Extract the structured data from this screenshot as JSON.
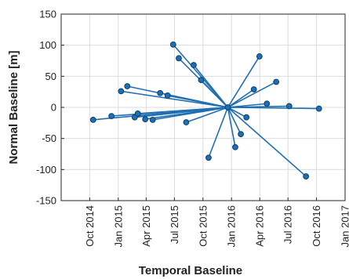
{
  "chart_data": {
    "type": "scatter",
    "xlabel": "Temporal Baseline",
    "ylabel": "Normal Baseline [m]",
    "ylim": [
      -150,
      150
    ],
    "yticks": [
      -150,
      -100,
      -50,
      0,
      50,
      100,
      150
    ],
    "xlim": [
      "2014-07-01",
      "2017-01-01"
    ],
    "xticks": [
      {
        "date": "2014-10-01",
        "label": "Oct 2014"
      },
      {
        "date": "2015-01-01",
        "label": "Jan 2015"
      },
      {
        "date": "2015-04-01",
        "label": "Apr 2015"
      },
      {
        "date": "2015-07-01",
        "label": "Jul 2015"
      },
      {
        "date": "2015-10-01",
        "label": "Oct 2015"
      },
      {
        "date": "2016-01-01",
        "label": "Jan 2016"
      },
      {
        "date": "2016-04-01",
        "label": "Apr 2016"
      },
      {
        "date": "2016-07-01",
        "label": "Jul 2016"
      },
      {
        "date": "2016-10-01",
        "label": "Oct 2016"
      },
      {
        "date": "2017-01-01",
        "label": "Jan 2017"
      }
    ],
    "grid": true,
    "color": "#1f6fb2",
    "marker_edge_color": "#0b3f6b",
    "reference": {
      "x": "2015-12-20",
      "y": 0
    },
    "points": [
      {
        "x": "2014-10-12",
        "y": -20
      },
      {
        "x": "2014-12-10",
        "y": -14
      },
      {
        "x": "2015-01-10",
        "y": 26
      },
      {
        "x": "2015-01-30",
        "y": 34
      },
      {
        "x": "2015-02-23",
        "y": -16
      },
      {
        "x": "2015-03-05",
        "y": -10
      },
      {
        "x": "2015-03-29",
        "y": -19
      },
      {
        "x": "2015-04-22",
        "y": -20
      },
      {
        "x": "2015-05-16",
        "y": 23
      },
      {
        "x": "2015-06-09",
        "y": 19
      },
      {
        "x": "2015-06-27",
        "y": 101
      },
      {
        "x": "2015-07-15",
        "y": 79
      },
      {
        "x": "2015-08-08",
        "y": -24
      },
      {
        "x": "2015-09-01",
        "y": 68
      },
      {
        "x": "2015-09-25",
        "y": 44
      },
      {
        "x": "2015-10-19",
        "y": -81
      },
      {
        "x": "2016-01-13",
        "y": -64
      },
      {
        "x": "2016-01-31",
        "y": -43
      },
      {
        "x": "2016-02-18",
        "y": -16
      },
      {
        "x": "2016-03-13",
        "y": 29
      },
      {
        "x": "2016-03-31",
        "y": 82
      },
      {
        "x": "2016-04-24",
        "y": 6
      },
      {
        "x": "2016-05-24",
        "y": 41
      },
      {
        "x": "2016-07-05",
        "y": 2
      },
      {
        "x": "2016-08-28",
        "y": -111
      },
      {
        "x": "2016-10-09",
        "y": -2
      }
    ]
  }
}
